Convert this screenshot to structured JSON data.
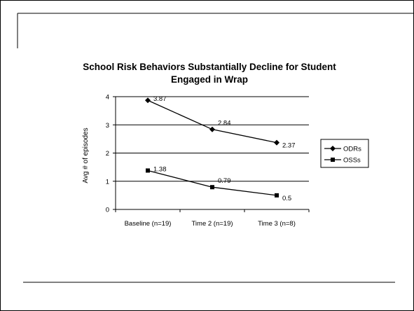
{
  "chart_data": {
    "type": "line",
    "title_lines": [
      "School Risk Behaviors Substantially Decline for Student",
      "Engaged in Wrap"
    ],
    "ylabel": "Avg # of episodes",
    "xlabel": "",
    "categories": [
      "Baseline (n=19)",
      "Time 2 (n=19)",
      "Time 3 (n=8)"
    ],
    "ylim": [
      0,
      4
    ],
    "yticks": [
      0,
      1,
      2,
      3,
      4
    ],
    "grid": "horizontal",
    "legend_position": "right",
    "series": [
      {
        "name": "ODRs",
        "values": [
          3.87,
          2.84,
          2.37
        ],
        "labels": [
          "3.87",
          "2.84",
          "2.37"
        ],
        "marker": "diamond",
        "color": "#000000"
      },
      {
        "name": "OSSs",
        "values": [
          1.38,
          0.79,
          0.5
        ],
        "labels": [
          "1.38",
          "0.79",
          "0.5"
        ],
        "marker": "square",
        "color": "#000000"
      }
    ]
  }
}
